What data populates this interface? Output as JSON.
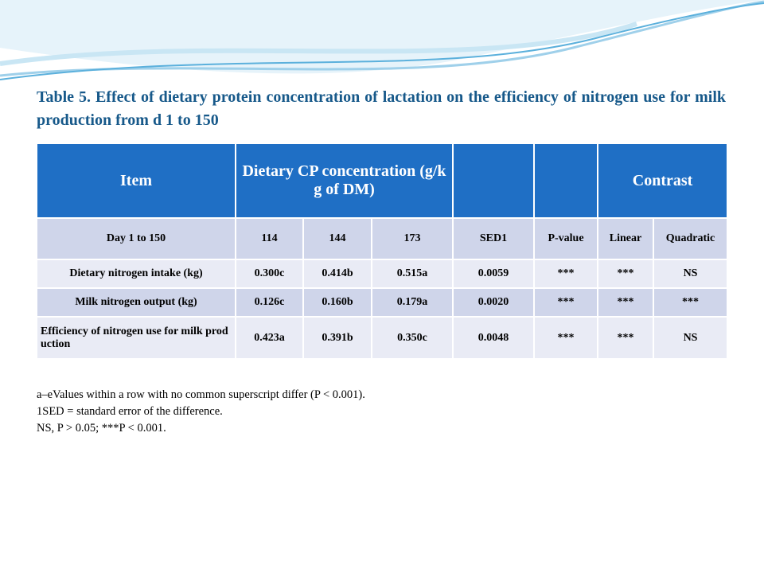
{
  "title": "Table 5. Effect of dietary protein concentration of lactation on the efficiency of nitrogen use for milk production from d 1 to 150",
  "table": {
    "header": [
      "Item",
      "Dietary CP concentration (g/kg of DM)",
      "Contrast"
    ],
    "subheader": [
      "Day 1 to 150",
      "114",
      "144",
      "173",
      "SED1",
      "P-value",
      "Linear",
      "Quadratic"
    ],
    "rows": [
      [
        "Dietary nitrogen intake (kg)",
        "0.300c",
        "0.414b",
        "0.515a",
        "0.0059",
        "***",
        "***",
        "NS"
      ],
      [
        "Milk nitrogen output (kg)",
        "0.126c",
        "0.160b",
        "0.179a",
        "0.0020",
        "***",
        "***",
        "***"
      ],
      [
        "Efficiency of nitrogen use for milk production",
        "0.423a",
        "0.391b",
        "0.350c",
        "0.0048",
        "***",
        "***",
        "NS"
      ]
    ]
  },
  "footnotes": [
    "a–eValues within a row with no common superscript differ (P < 0.001).",
    "1SED = standard error of the difference.",
    "NS, P > 0.05; ***P < 0.001."
  ]
}
